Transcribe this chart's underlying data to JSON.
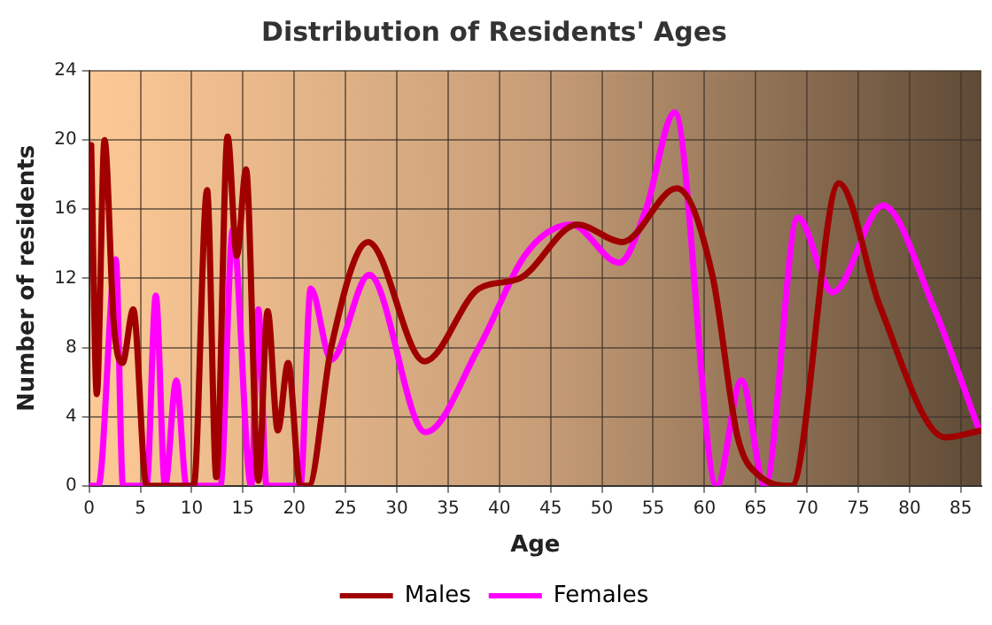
{
  "chart_data": {
    "type": "line",
    "title": "Distribution of Residents' Ages",
    "xlabel": "Age",
    "ylabel": "Number of residents",
    "xlim": [
      0,
      87
    ],
    "xticks": [
      0,
      5,
      10,
      15,
      20,
      25,
      30,
      35,
      40,
      45,
      50,
      55,
      60,
      65,
      70,
      75,
      80,
      85
    ],
    "ylim": [
      0,
      24
    ],
    "yticks": [
      0,
      4,
      8,
      12,
      16,
      20,
      24
    ],
    "grid": true,
    "legend": "bottom",
    "marker": "none",
    "line_style": "solid",
    "series": [
      {
        "name": "Males",
        "color": "#a00000",
        "x": [
          0.2,
          0.75,
          1.5,
          2.4,
          3.25,
          4.3,
          5.6,
          7,
          8.5,
          10.2,
          11.5,
          12.4,
          13.5,
          14.4,
          15.3,
          16.5,
          17.4,
          18.4,
          19.4,
          20.6,
          21.4,
          23.6,
          27.2,
          32.7,
          38,
          42,
          47.6,
          52,
          57.3,
          60.8,
          63.2,
          65.3,
          68.5,
          73.1,
          77.1,
          83.5,
          87
        ],
        "values": [
          19.7,
          5.3,
          20,
          9.4,
          7.1,
          10.2,
          0,
          0,
          0,
          0,
          17.1,
          0.5,
          20.2,
          13.3,
          18.3,
          0.3,
          10.1,
          3.2,
          7.1,
          0,
          0,
          8,
          14.1,
          7.2,
          11.4,
          12,
          15.1,
          14.1,
          17.2,
          12.1,
          2.9,
          0.6,
          0,
          17.5,
          10.4,
          2.8,
          3.2
        ]
      },
      {
        "name": "Females",
        "color": "#ff00ff",
        "x": [
          0,
          0.9,
          2.6,
          3.3,
          5.6,
          6.5,
          7.4,
          8.5,
          9.5,
          12.8,
          14,
          15.8,
          16.5,
          17.3,
          20.6,
          21.6,
          23.6,
          27.3,
          32.8,
          38,
          42.7,
          47,
          51.7,
          54.3,
          57.1,
          61.2,
          63.6,
          65.9,
          69.1,
          72.5,
          77.4,
          82.3,
          86.8
        ],
        "values": [
          0,
          0,
          13.1,
          0,
          0,
          11,
          0,
          6.1,
          0,
          0,
          14.8,
          0,
          10.2,
          0,
          0,
          11.4,
          7.3,
          12.2,
          3.1,
          8,
          13.5,
          15.1,
          12.9,
          16,
          21.6,
          0,
          6.1,
          0,
          15.5,
          11.2,
          16.2,
          10.4,
          3.2
        ]
      }
    ]
  }
}
